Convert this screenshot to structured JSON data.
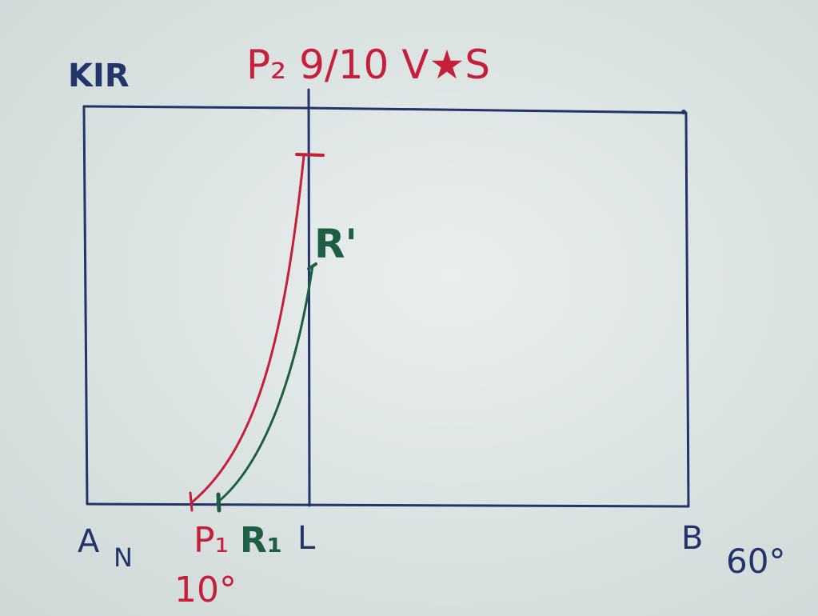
{
  "labels": {
    "top_left": "KIR",
    "top_title": "P₂ 9/10 V★S",
    "point_r_prime": "R'",
    "corner_a": "A",
    "corner_a_sub": "N",
    "point_p1": "P₁",
    "point_r1": "R₁",
    "point_l": "L",
    "corner_b": "B",
    "angle_b": "60°",
    "angle_p1": "10°"
  },
  "colors": {
    "paper": "#dfe7e6",
    "frame": "#23346b",
    "red_curve": "#c61f3a",
    "green_curve": "#1e5e45"
  }
}
